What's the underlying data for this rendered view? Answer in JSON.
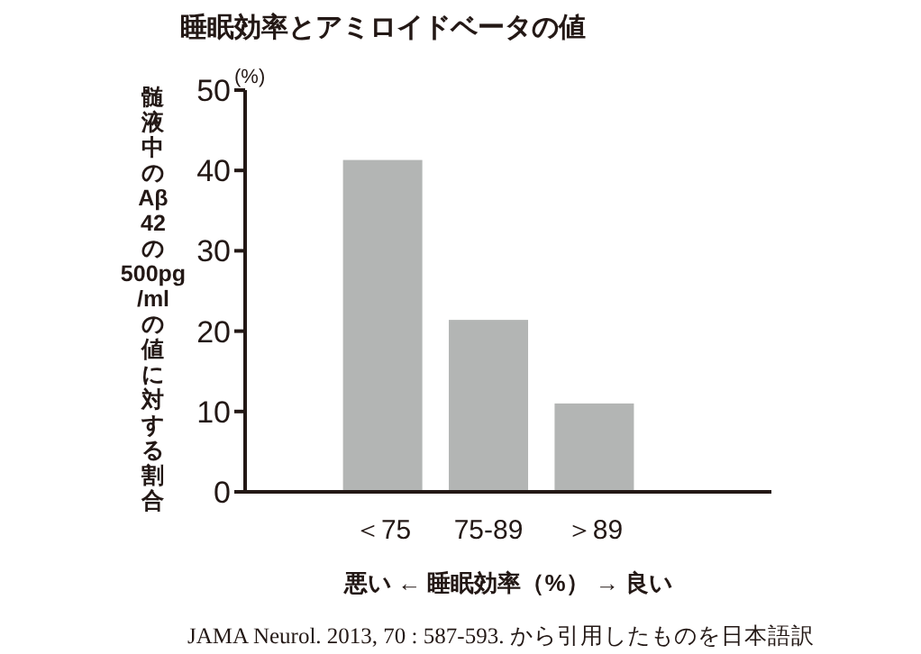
{
  "chart_data": {
    "type": "bar",
    "title": "睡眠効率とアミロイドベータの値",
    "xlabel": "悪い ← 睡眠効率（%） → 良い",
    "ylabel": "髄液中のAβ42の500pg/mlの値に対する割合",
    "annotations": [
      "(%)",
      "JAMA Neurol. 2013, 70 : 587-593. から引用したものを日本語訳"
    ],
    "categories": [
      "＜75",
      "75-89",
      "＞89"
    ],
    "values": [
      41.3,
      21.4,
      11.0
    ],
    "color": "#b3b5b4",
    "ylim": [
      0,
      50
    ],
    "yticks": [
      0,
      10,
      20,
      30,
      40,
      50
    ],
    "grid": false,
    "legend": false
  }
}
